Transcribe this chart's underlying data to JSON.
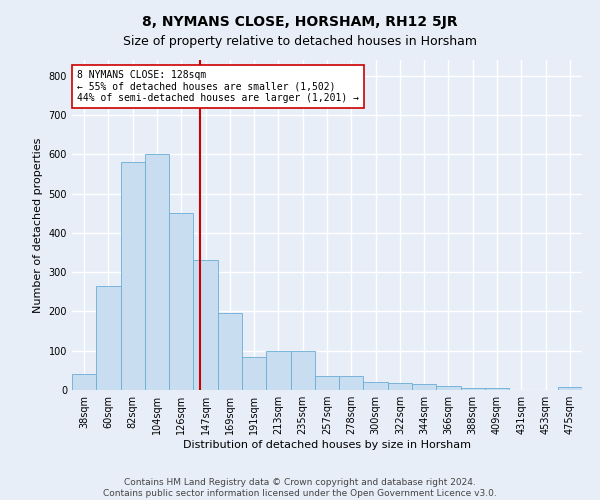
{
  "title": "8, NYMANS CLOSE, HORSHAM, RH12 5JR",
  "subtitle": "Size of property relative to detached houses in Horsham",
  "xlabel": "Distribution of detached houses by size in Horsham",
  "ylabel": "Number of detached properties",
  "categories": [
    "38sqm",
    "60sqm",
    "82sqm",
    "104sqm",
    "126sqm",
    "147sqm",
    "169sqm",
    "191sqm",
    "213sqm",
    "235sqm",
    "257sqm",
    "278sqm",
    "300sqm",
    "322sqm",
    "344sqm",
    "366sqm",
    "388sqm",
    "409sqm",
    "431sqm",
    "453sqm",
    "475sqm"
  ],
  "values": [
    40,
    265,
    580,
    600,
    450,
    330,
    195,
    85,
    100,
    100,
    35,
    35,
    20,
    17,
    15,
    10,
    5,
    5,
    0,
    0,
    8
  ],
  "bar_color": "#c8ddf0",
  "bar_edge_color": "#6aaed6",
  "vline_x": 4.78,
  "vline_color": "#cc0000",
  "annotation_text": "8 NYMANS CLOSE: 128sqm\n← 55% of detached houses are smaller (1,502)\n44% of semi-detached houses are larger (1,201) →",
  "annotation_box_color": "#ffffff",
  "annotation_box_edge": "#cc0000",
  "ylim": [
    0,
    840
  ],
  "yticks": [
    0,
    100,
    200,
    300,
    400,
    500,
    600,
    700,
    800
  ],
  "footer1": "Contains HM Land Registry data © Crown copyright and database right 2024.",
  "footer2": "Contains public sector information licensed under the Open Government Licence v3.0.",
  "bg_color": "#e8eef8",
  "plot_bg_color": "#e8eef8",
  "grid_color": "#ffffff",
  "title_fontsize": 10,
  "subtitle_fontsize": 9,
  "axis_label_fontsize": 8,
  "tick_fontsize": 7,
  "footer_fontsize": 6.5,
  "annot_fontsize": 7
}
